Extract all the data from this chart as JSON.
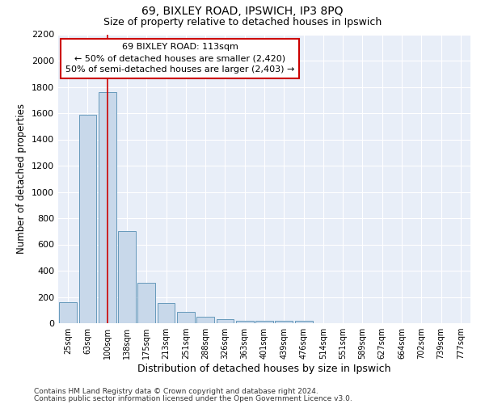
{
  "title1": "69, BIXLEY ROAD, IPSWICH, IP3 8PQ",
  "title2": "Size of property relative to detached houses in Ipswich",
  "xlabel": "Distribution of detached houses by size in Ipswich",
  "ylabel": "Number of detached properties",
  "bar_color": "#c8d8ea",
  "bar_edge_color": "#6699bb",
  "background_color": "#e8eef8",
  "grid_color": "#ffffff",
  "categories": [
    "25sqm",
    "63sqm",
    "100sqm",
    "138sqm",
    "175sqm",
    "213sqm",
    "251sqm",
    "288sqm",
    "326sqm",
    "363sqm",
    "401sqm",
    "439sqm",
    "476sqm",
    "514sqm",
    "551sqm",
    "589sqm",
    "627sqm",
    "664sqm",
    "702sqm",
    "739sqm",
    "777sqm"
  ],
  "values": [
    160,
    1590,
    1760,
    700,
    310,
    155,
    85,
    50,
    30,
    20,
    20,
    20,
    20,
    0,
    0,
    0,
    0,
    0,
    0,
    0,
    0
  ],
  "ylim": [
    0,
    2200
  ],
  "yticks": [
    0,
    200,
    400,
    600,
    800,
    1000,
    1200,
    1400,
    1600,
    1800,
    2000,
    2200
  ],
  "annotation_line1": "69 BIXLEY ROAD: 113sqm",
  "annotation_line2": "← 50% of detached houses are smaller (2,420)",
  "annotation_line3": "50% of semi-detached houses are larger (2,403) →",
  "vline_x": 2.0,
  "vline_color": "#cc0000",
  "annotation_box_color": "#ffffff",
  "annotation_box_edge": "#cc0000",
  "footnote1": "Contains HM Land Registry data © Crown copyright and database right 2024.",
  "footnote2": "Contains public sector information licensed under the Open Government Licence v3.0."
}
